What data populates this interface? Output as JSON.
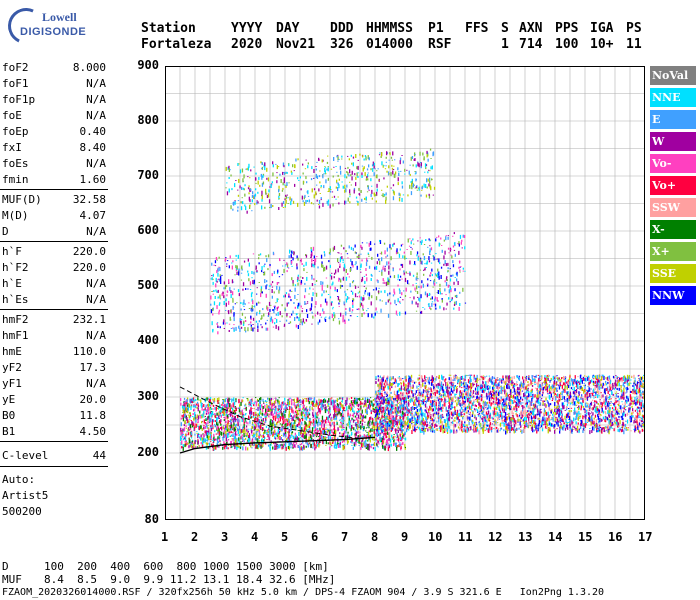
{
  "logo": {
    "line1": "Lowell",
    "line2": "DIGISONDE"
  },
  "header": {
    "labels": [
      "Station",
      "YYYY",
      "DAY",
      "DDD",
      "HHMMSS",
      "P1",
      "FFS",
      "S",
      "AXN",
      "PPS",
      "IGA",
      "PS"
    ],
    "values": [
      "Fortaleza",
      "2020",
      "Nov21",
      "326",
      "014000",
      "RSF",
      "",
      "1",
      "714",
      "100",
      "10+",
      "11"
    ]
  },
  "params1": [
    {
      "name": "foF2",
      "value": "8.000"
    },
    {
      "name": "foF1",
      "value": "N/A"
    },
    {
      "name": "foF1p",
      "value": "N/A"
    },
    {
      "name": "foE",
      "value": "N/A"
    },
    {
      "name": "foEp",
      "value": "0.40"
    },
    {
      "name": "fxI",
      "value": "8.40"
    },
    {
      "name": "foEs",
      "value": "N/A"
    },
    {
      "name": "fmin",
      "value": "1.60"
    }
  ],
  "params2": [
    {
      "name": "MUF(D)",
      "value": "32.58"
    },
    {
      "name": "M(D)",
      "value": "4.07"
    },
    {
      "name": "D",
      "value": "N/A"
    }
  ],
  "params3": [
    {
      "name": "h`F",
      "value": "220.0"
    },
    {
      "name": "h`F2",
      "value": "220.0"
    },
    {
      "name": "h`E",
      "value": "N/A"
    },
    {
      "name": "h`Es",
      "value": "N/A"
    }
  ],
  "params4": [
    {
      "name": "hmF2",
      "value": "232.1"
    },
    {
      "name": "hmF1",
      "value": "N/A"
    },
    {
      "name": "hmE",
      "value": "110.0"
    },
    {
      "name": "yF2",
      "value": "17.3"
    },
    {
      "name": "yF1",
      "value": "N/A"
    },
    {
      "name": "yE",
      "value": "20.0"
    },
    {
      "name": "B0",
      "value": "11.8"
    },
    {
      "name": "B1",
      "value": "4.50"
    }
  ],
  "clevel": {
    "name": "C-level",
    "value": "44"
  },
  "auto": [
    "Auto:",
    "Artist5",
    "500200"
  ],
  "chart_data": {
    "type": "scatter",
    "title": "",
    "xlabel": "",
    "ylabel": "",
    "xlim": [
      1,
      17
    ],
    "ylim": [
      80,
      900
    ],
    "x_ticks": [
      "1",
      "2",
      "3",
      "4",
      "5",
      "6",
      "7",
      "8",
      "9",
      "10",
      "11",
      "12",
      "13",
      "14",
      "15",
      "16",
      "17"
    ],
    "y_ticks": [
      "80",
      "200",
      "300",
      "400",
      "500",
      "600",
      "700",
      "800",
      "900"
    ],
    "grid": true,
    "legend_position": "right",
    "legend": [
      {
        "name": "NoVal",
        "color": "#808080"
      },
      {
        "name": "NNE",
        "color": "#00e0ff"
      },
      {
        "name": "E",
        "color": "#40a0ff"
      },
      {
        "name": "W",
        "color": "#a000a0"
      },
      {
        "name": "Vo-",
        "color": "#ff40c0"
      },
      {
        "name": "Vo+",
        "color": "#ff0040"
      },
      {
        "name": "SSW",
        "color": "#ffa0a0"
      },
      {
        "name": "X-",
        "color": "#008000"
      },
      {
        "name": "X+",
        "color": "#80c040"
      },
      {
        "name": "SSE",
        "color": "#c0d000"
      },
      {
        "name": "NNW",
        "color": "#0000ff"
      }
    ],
    "echo_bands": [
      {
        "x": [
          3.0,
          10.0
        ],
        "y": [
          650,
          740
        ],
        "colors": [
          "#40a0ff",
          "#00e0ff",
          "#80c040",
          "#c0d000",
          "#a000a0"
        ]
      },
      {
        "x": [
          2.5,
          11.0
        ],
        "y": [
          440,
          580
        ],
        "colors": [
          "#40a0ff",
          "#00e0ff",
          "#80c040",
          "#a000a0",
          "#0000ff",
          "#ff40c0"
        ]
      },
      {
        "x": [
          1.5,
          9.0
        ],
        "y": [
          210,
          300
        ],
        "colors": [
          "#40a0ff",
          "#ff0040",
          "#a000a0",
          "#ff40c0",
          "#00e0ff",
          "#008000",
          "#c0d000"
        ]
      },
      {
        "x": [
          8.0,
          17.0
        ],
        "y": [
          240,
          340
        ],
        "colors": [
          "#40a0ff",
          "#0000ff",
          "#ff0040",
          "#a000a0",
          "#c0d000",
          "#00e0ff",
          "#ffa0a0"
        ]
      }
    ],
    "profile": [
      [
        1.5,
        200
      ],
      [
        2.0,
        208
      ],
      [
        3.0,
        215
      ],
      [
        4.0,
        218
      ],
      [
        5.0,
        220
      ],
      [
        6.0,
        222
      ],
      [
        7.0,
        224
      ],
      [
        8.0,
        228
      ]
    ],
    "dashed": [
      [
        1.5,
        318
      ],
      [
        2.5,
        290
      ],
      [
        3.5,
        265
      ],
      [
        4.5,
        248
      ],
      [
        5.5,
        240
      ],
      [
        6.5,
        232
      ],
      [
        7.5,
        226
      ]
    ]
  },
  "footer": {
    "d_label": "D",
    "d_values": "100  200  400  600  800 1000 1500 3000 [km]",
    "muf_label": "MUF",
    "muf_values": "8.4  8.5  9.0  9.9 11.2 13.1 18.4 32.6 [MHz]",
    "file_line": "FZAOM_2020326014000.RSF / 320fx256h 50 kHz 5.0 km / DPS-4 FZAOM 904 / 3.9 S 321.6 E   Ion2Png 1.3.20"
  }
}
